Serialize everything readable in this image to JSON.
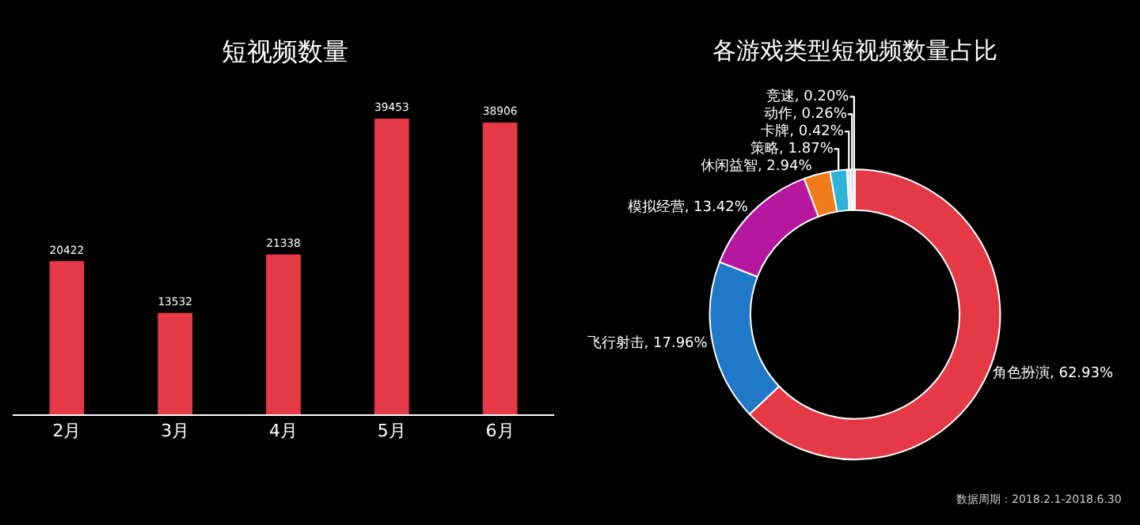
{
  "chart_data": [
    {
      "type": "bar",
      "title": "短视频数量",
      "categories": [
        "2月",
        "3月",
        "4月",
        "5月",
        "6月"
      ],
      "values": [
        20422,
        13532,
        21338,
        39453,
        38906
      ],
      "color": "#e63946",
      "data_labels": true
    },
    {
      "type": "donut",
      "title": "各游戏类型短视频数量占比",
      "categories": [
        "角色扮演",
        "飞行射击",
        "模拟经营",
        "休闲益智",
        "策略",
        "卡牌",
        "动作",
        "竞速"
      ],
      "values": [
        62.93,
        17.96,
        13.42,
        2.94,
        1.87,
        0.42,
        0.26,
        0.2
      ],
      "value_labels": [
        "62.93%",
        "17.96%",
        "13.42%",
        "2.94%",
        "1.87%",
        "0.42%",
        "0.26%",
        "0.20%"
      ],
      "colors": [
        "#e63946",
        "#1f78c8",
        "#b5179e",
        "#f07c1a",
        "#2cb3d6",
        "#e8e8e8",
        "#9a9a9a",
        "#cfcfcf"
      ],
      "annotations": [
        "数据周期：2018.2.1-2018.6.30"
      ]
    }
  ]
}
